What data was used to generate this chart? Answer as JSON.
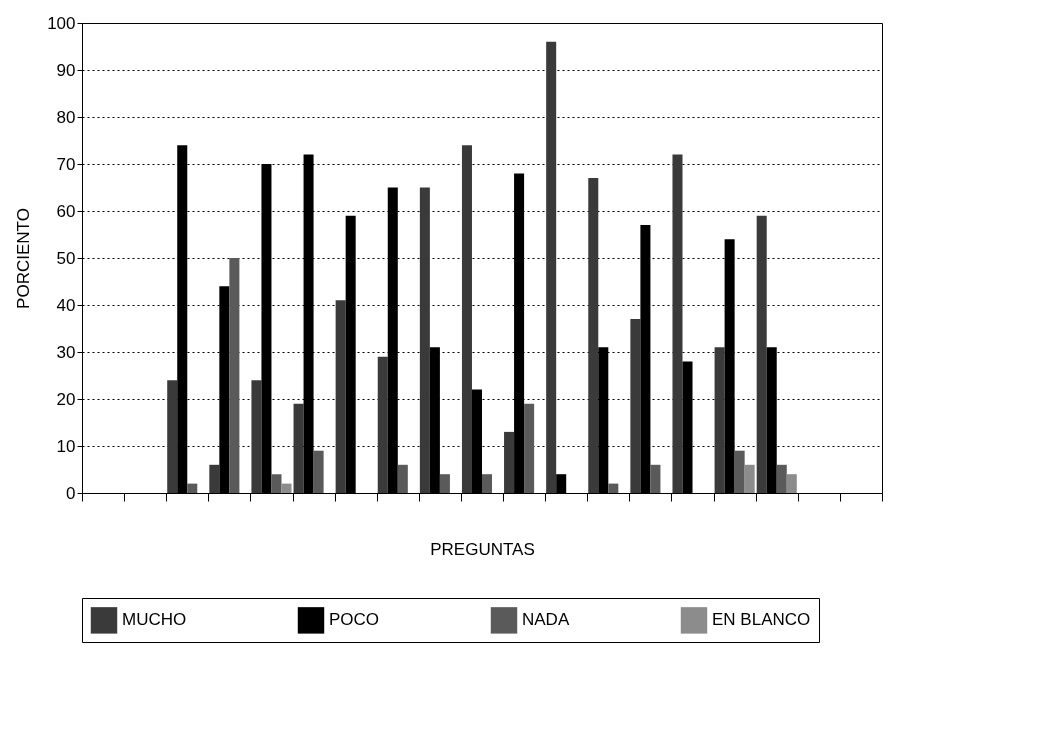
{
  "chart_data": {
    "type": "bar",
    "xlabel": "PREGUNTAS",
    "ylabel": "PORCIENTO",
    "categories": [
      null,
      null,
      null,
      null,
      null,
      null,
      null,
      null,
      null,
      null,
      null,
      null,
      null,
      null,
      null,
      null,
      null,
      null,
      null
    ],
    "series": [
      {
        "name": "MUCHO",
        "color": "#3a3a3a",
        "values": [
          null,
          null,
          24,
          6,
          24,
          19,
          41,
          29,
          65,
          74,
          13,
          96,
          67,
          37,
          72,
          31,
          59,
          null,
          null
        ]
      },
      {
        "name": "POCO",
        "color": "#000000",
        "values": [
          null,
          null,
          74,
          44,
          70,
          72,
          59,
          65,
          31,
          22,
          68,
          4,
          31,
          57,
          28,
          54,
          31,
          null,
          null
        ]
      },
      {
        "name": "NADA",
        "color": "#5a5a5a",
        "values": [
          null,
          null,
          2,
          50,
          4,
          9,
          0,
          6,
          4,
          4,
          19,
          0,
          2,
          6,
          0,
          9,
          6,
          null,
          null
        ]
      },
      {
        "name": "EN BLANCO",
        "color": "#8c8c8c",
        "values": [
          null,
          null,
          0,
          0,
          2,
          0,
          0,
          0,
          0,
          0,
          0,
          0,
          0,
          0,
          0,
          6,
          4,
          null,
          null
        ]
      }
    ],
    "ylim": [
      0,
      100
    ],
    "yticks": [
      0,
      10,
      20,
      30,
      40,
      50,
      60,
      70,
      80,
      90,
      100
    ],
    "grid": "y",
    "legend": "bottom",
    "tick_labels": "y"
  }
}
